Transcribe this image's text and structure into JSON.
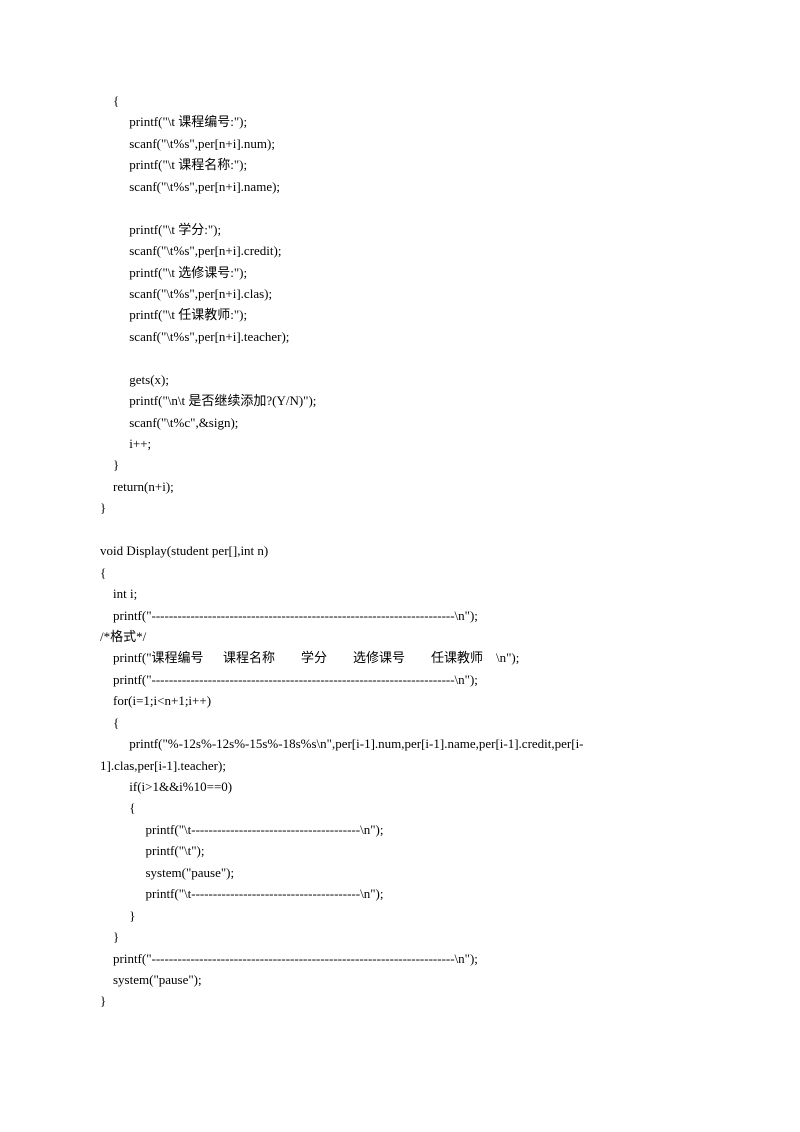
{
  "lines": [
    "    {",
    "         printf(\"\\t 课程编号:\");",
    "         scanf(\"\\t%s\",per[n+i].num);",
    "         printf(\"\\t 课程名称:\");",
    "         scanf(\"\\t%s\",per[n+i].name);",
    "",
    "         printf(\"\\t 学分:\");",
    "         scanf(\"\\t%s\",per[n+i].credit);",
    "         printf(\"\\t 选修课号:\");",
    "         scanf(\"\\t%s\",per[n+i].clas);",
    "         printf(\"\\t 任课教师:\");",
    "         scanf(\"\\t%s\",per[n+i].teacher);",
    "",
    "         gets(x);",
    "         printf(\"\\n\\t 是否继续添加?(Y/N)\");",
    "         scanf(\"\\t%c\",&sign);",
    "         i++;",
    "    }",
    "    return(n+i);",
    "}",
    "",
    "void Display(student per[],int n)",
    "{",
    "    int i;",
    "    printf(\"----------------------------------------------------------------------\\n\");",
    "/*格式*/",
    "    printf(\"课程编号      课程名称        学分        选修课号        任课教师    \\n\");",
    "    printf(\"----------------------------------------------------------------------\\n\");",
    "    for(i=1;i<n+1;i++)",
    "    {",
    "         printf(\"%-12s%-12s%-15s%-18s%s\\n\",per[i-1].num,per[i-1].name,per[i-1].credit,per[i-",
    "1].clas,per[i-1].teacher);",
    "         if(i>1&&i%10==0)",
    "         {",
    "              printf(\"\\t---------------------------------------\\n\");",
    "              printf(\"\\t\");",
    "              system(\"pause\");",
    "              printf(\"\\t---------------------------------------\\n\");",
    "         }",
    "    }",
    "    printf(\"----------------------------------------------------------------------\\n\");",
    "    system(\"pause\");",
    "}"
  ]
}
